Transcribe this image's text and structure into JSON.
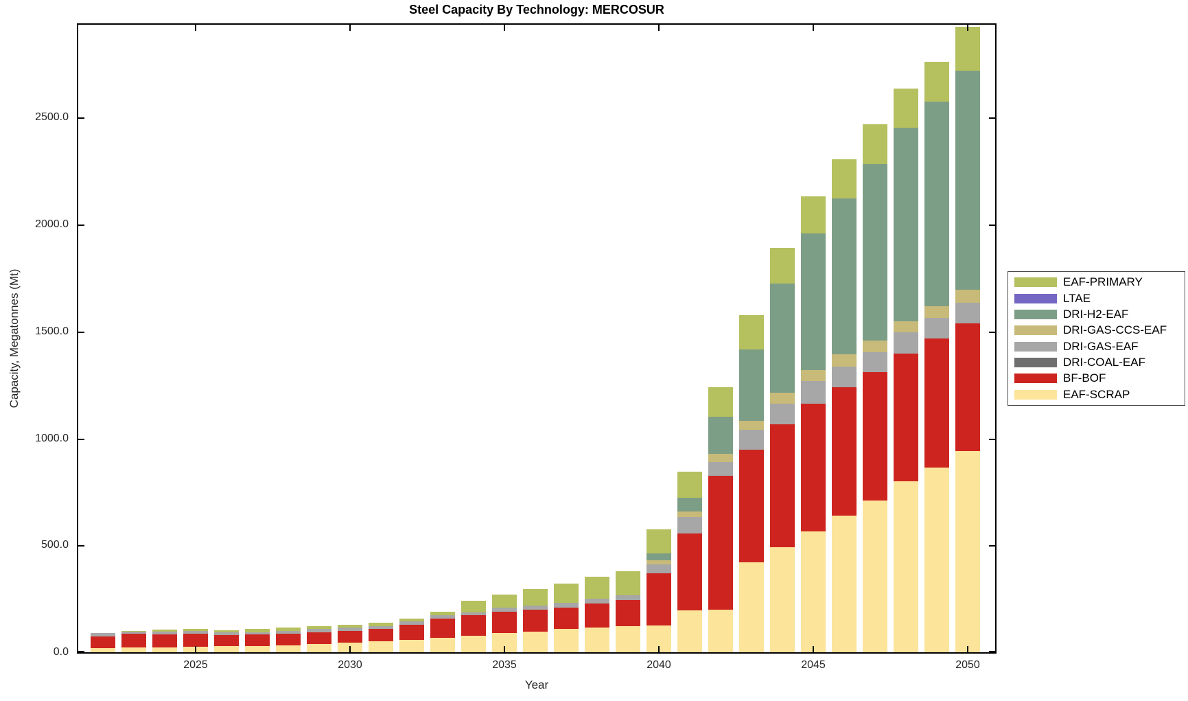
{
  "title": "Steel Capacity By Technology: MERCOSUR",
  "axes": {
    "xlabel": "Year",
    "ylabel": "Capacity, Megatonnes (Mt)",
    "y_ticks": [
      "0.0",
      "500.0",
      "1000.0",
      "1500.0",
      "2000.0",
      "2500.0"
    ],
    "y_tick_values": [
      0,
      500,
      1000,
      1500,
      2000,
      2500
    ],
    "x_ticks": [
      "2025",
      "2030",
      "2035",
      "2040",
      "2045",
      "2050"
    ],
    "x_tick_values": [
      2025,
      2030,
      2035,
      2040,
      2045,
      2050
    ]
  },
  "chart_data": {
    "type": "bar",
    "stacked": true,
    "title": "Steel Capacity By Technology: MERCOSUR",
    "xlabel": "Year",
    "ylabel": "Capacity, Megatonnes (Mt)",
    "ylim": [
      0,
      2935
    ],
    "grid": false,
    "legend_position": "outside-right",
    "categories": [
      2022,
      2023,
      2024,
      2025,
      2026,
      2027,
      2028,
      2029,
      2030,
      2031,
      2032,
      2033,
      2034,
      2035,
      2036,
      2037,
      2038,
      2039,
      2040,
      2041,
      2042,
      2043,
      2044,
      2045,
      2046,
      2047,
      2048,
      2049,
      2050
    ],
    "series": [
      {
        "name": "EAF-SCRAP",
        "color": "#fce49b",
        "values": [
          20,
          22,
          22,
          26,
          29,
          29,
          32,
          38,
          45,
          51,
          58,
          67,
          77,
          90,
          96,
          109,
          115,
          121,
          125,
          195,
          198,
          422,
          492,
          566,
          639,
          710,
          799,
          863,
          940
        ]
      },
      {
        "name": "BF-BOF",
        "color": "#cd241f",
        "values": [
          55,
          64,
          61,
          60,
          51,
          54,
          54,
          55,
          54,
          58,
          70,
          90,
          96,
          99,
          102,
          99,
          112,
          122,
          243,
          361,
          627,
          524,
          573,
          598,
          601,
          601,
          598,
          604,
          598
        ]
      },
      {
        "name": "DRI-COAL-EAF",
        "color": "#6e6e6e",
        "values": [
          0,
          0,
          0,
          0,
          0,
          0,
          0,
          0,
          0,
          0,
          0,
          0,
          0,
          0,
          0,
          0,
          0,
          0,
          0,
          0,
          0,
          0,
          0,
          0,
          0,
          0,
          0,
          0,
          0
        ]
      },
      {
        "name": "DRI-GAS-EAF",
        "color": "#a7a7a7",
        "values": [
          15,
          10,
          13,
          13,
          13,
          10,
          13,
          16,
          16,
          12,
          16,
          16,
          12,
          19,
          19,
          22,
          22,
          22,
          42,
          77,
          64,
          93,
          99,
          105,
          96,
          92,
          99,
          96,
          96
        ]
      },
      {
        "name": "DRI-GAS-CCS-EAF",
        "color": "#c8ba78",
        "values": [
          0,
          0,
          0,
          0,
          0,
          0,
          0,
          0,
          0,
          0,
          0,
          0,
          0,
          0,
          0,
          0,
          0,
          0,
          19,
          26,
          38,
          42,
          51,
          51,
          58,
          55,
          51,
          55,
          60
        ]
      },
      {
        "name": "DRI-H2-EAF",
        "color": "#7d9e86",
        "values": [
          0,
          0,
          0,
          0,
          0,
          0,
          0,
          0,
          0,
          0,
          0,
          0,
          0,
          0,
          0,
          0,
          0,
          0,
          32,
          64,
          173,
          335,
          508,
          640,
          729,
          825,
          905,
          956,
          1027
        ]
      },
      {
        "name": "LTAE",
        "color": "#7466c3",
        "values": [
          0,
          0,
          0,
          0,
          0,
          0,
          0,
          0,
          0,
          0,
          0,
          0,
          0,
          0,
          0,
          0,
          0,
          0,
          0,
          0,
          0,
          0,
          0,
          0,
          0,
          0,
          0,
          0,
          0
        ]
      },
      {
        "name": "EAF-PRIMARY",
        "color": "#b5c05e",
        "values": [
          0,
          3,
          10,
          10,
          9,
          16,
          16,
          12,
          13,
          16,
          13,
          16,
          55,
          61,
          77,
          90,
          103,
          115,
          115,
          121,
          140,
          160,
          167,
          173,
          182,
          185,
          186,
          189,
          205
        ]
      }
    ]
  },
  "legend": {
    "order_note": "top to bottom",
    "items": [
      {
        "label": "EAF-PRIMARY",
        "color": "#b5c05e"
      },
      {
        "label": "LTAE",
        "color": "#7466c3"
      },
      {
        "label": "DRI-H2-EAF",
        "color": "#7d9e86"
      },
      {
        "label": "DRI-GAS-CCS-EAF",
        "color": "#c8ba78"
      },
      {
        "label": "DRI-GAS-EAF",
        "color": "#a7a7a7"
      },
      {
        "label": "DRI-COAL-EAF",
        "color": "#6e6e6e"
      },
      {
        "label": "BF-BOF",
        "color": "#cd241f"
      },
      {
        "label": "EAF-SCRAP",
        "color": "#fce49b"
      }
    ]
  }
}
